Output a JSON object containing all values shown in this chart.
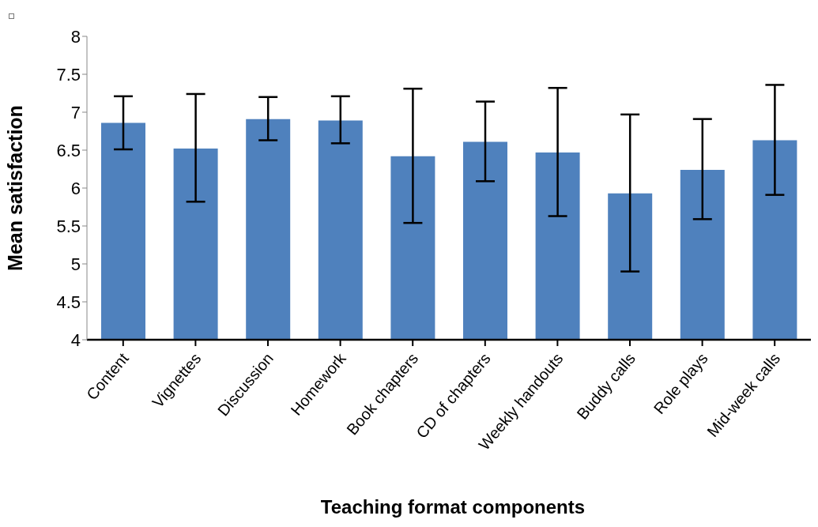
{
  "chart_data": {
    "type": "bar",
    "xlabel": "Teaching format components",
    "ylabel": "Mean satisfaction",
    "categories": [
      "Content",
      "Vignettes",
      "Discussion",
      "Homework",
      "Book chapters",
      "CD of chapters",
      "Weekly handouts",
      "Buddy calls",
      "Role plays",
      "Mid-week calls"
    ],
    "values": [
      6.86,
      6.52,
      6.91,
      6.89,
      6.42,
      6.61,
      6.47,
      5.93,
      6.24,
      6.63
    ],
    "errors": [
      [
        6.51,
        7.21
      ],
      [
        5.82,
        7.24
      ],
      [
        6.63,
        7.2
      ],
      [
        6.59,
        7.21
      ],
      [
        5.54,
        7.31
      ],
      [
        6.09,
        7.14
      ],
      [
        5.63,
        7.32
      ],
      [
        4.9,
        6.97
      ],
      [
        5.59,
        6.91
      ],
      [
        5.91,
        7.36
      ]
    ],
    "color": "#4f81bd",
    "ylim": [
      4,
      8
    ],
    "yticks": [
      4,
      4.5,
      5,
      5.5,
      6,
      6.5,
      7,
      7.5,
      8
    ],
    "grid": false,
    "legend": false
  }
}
